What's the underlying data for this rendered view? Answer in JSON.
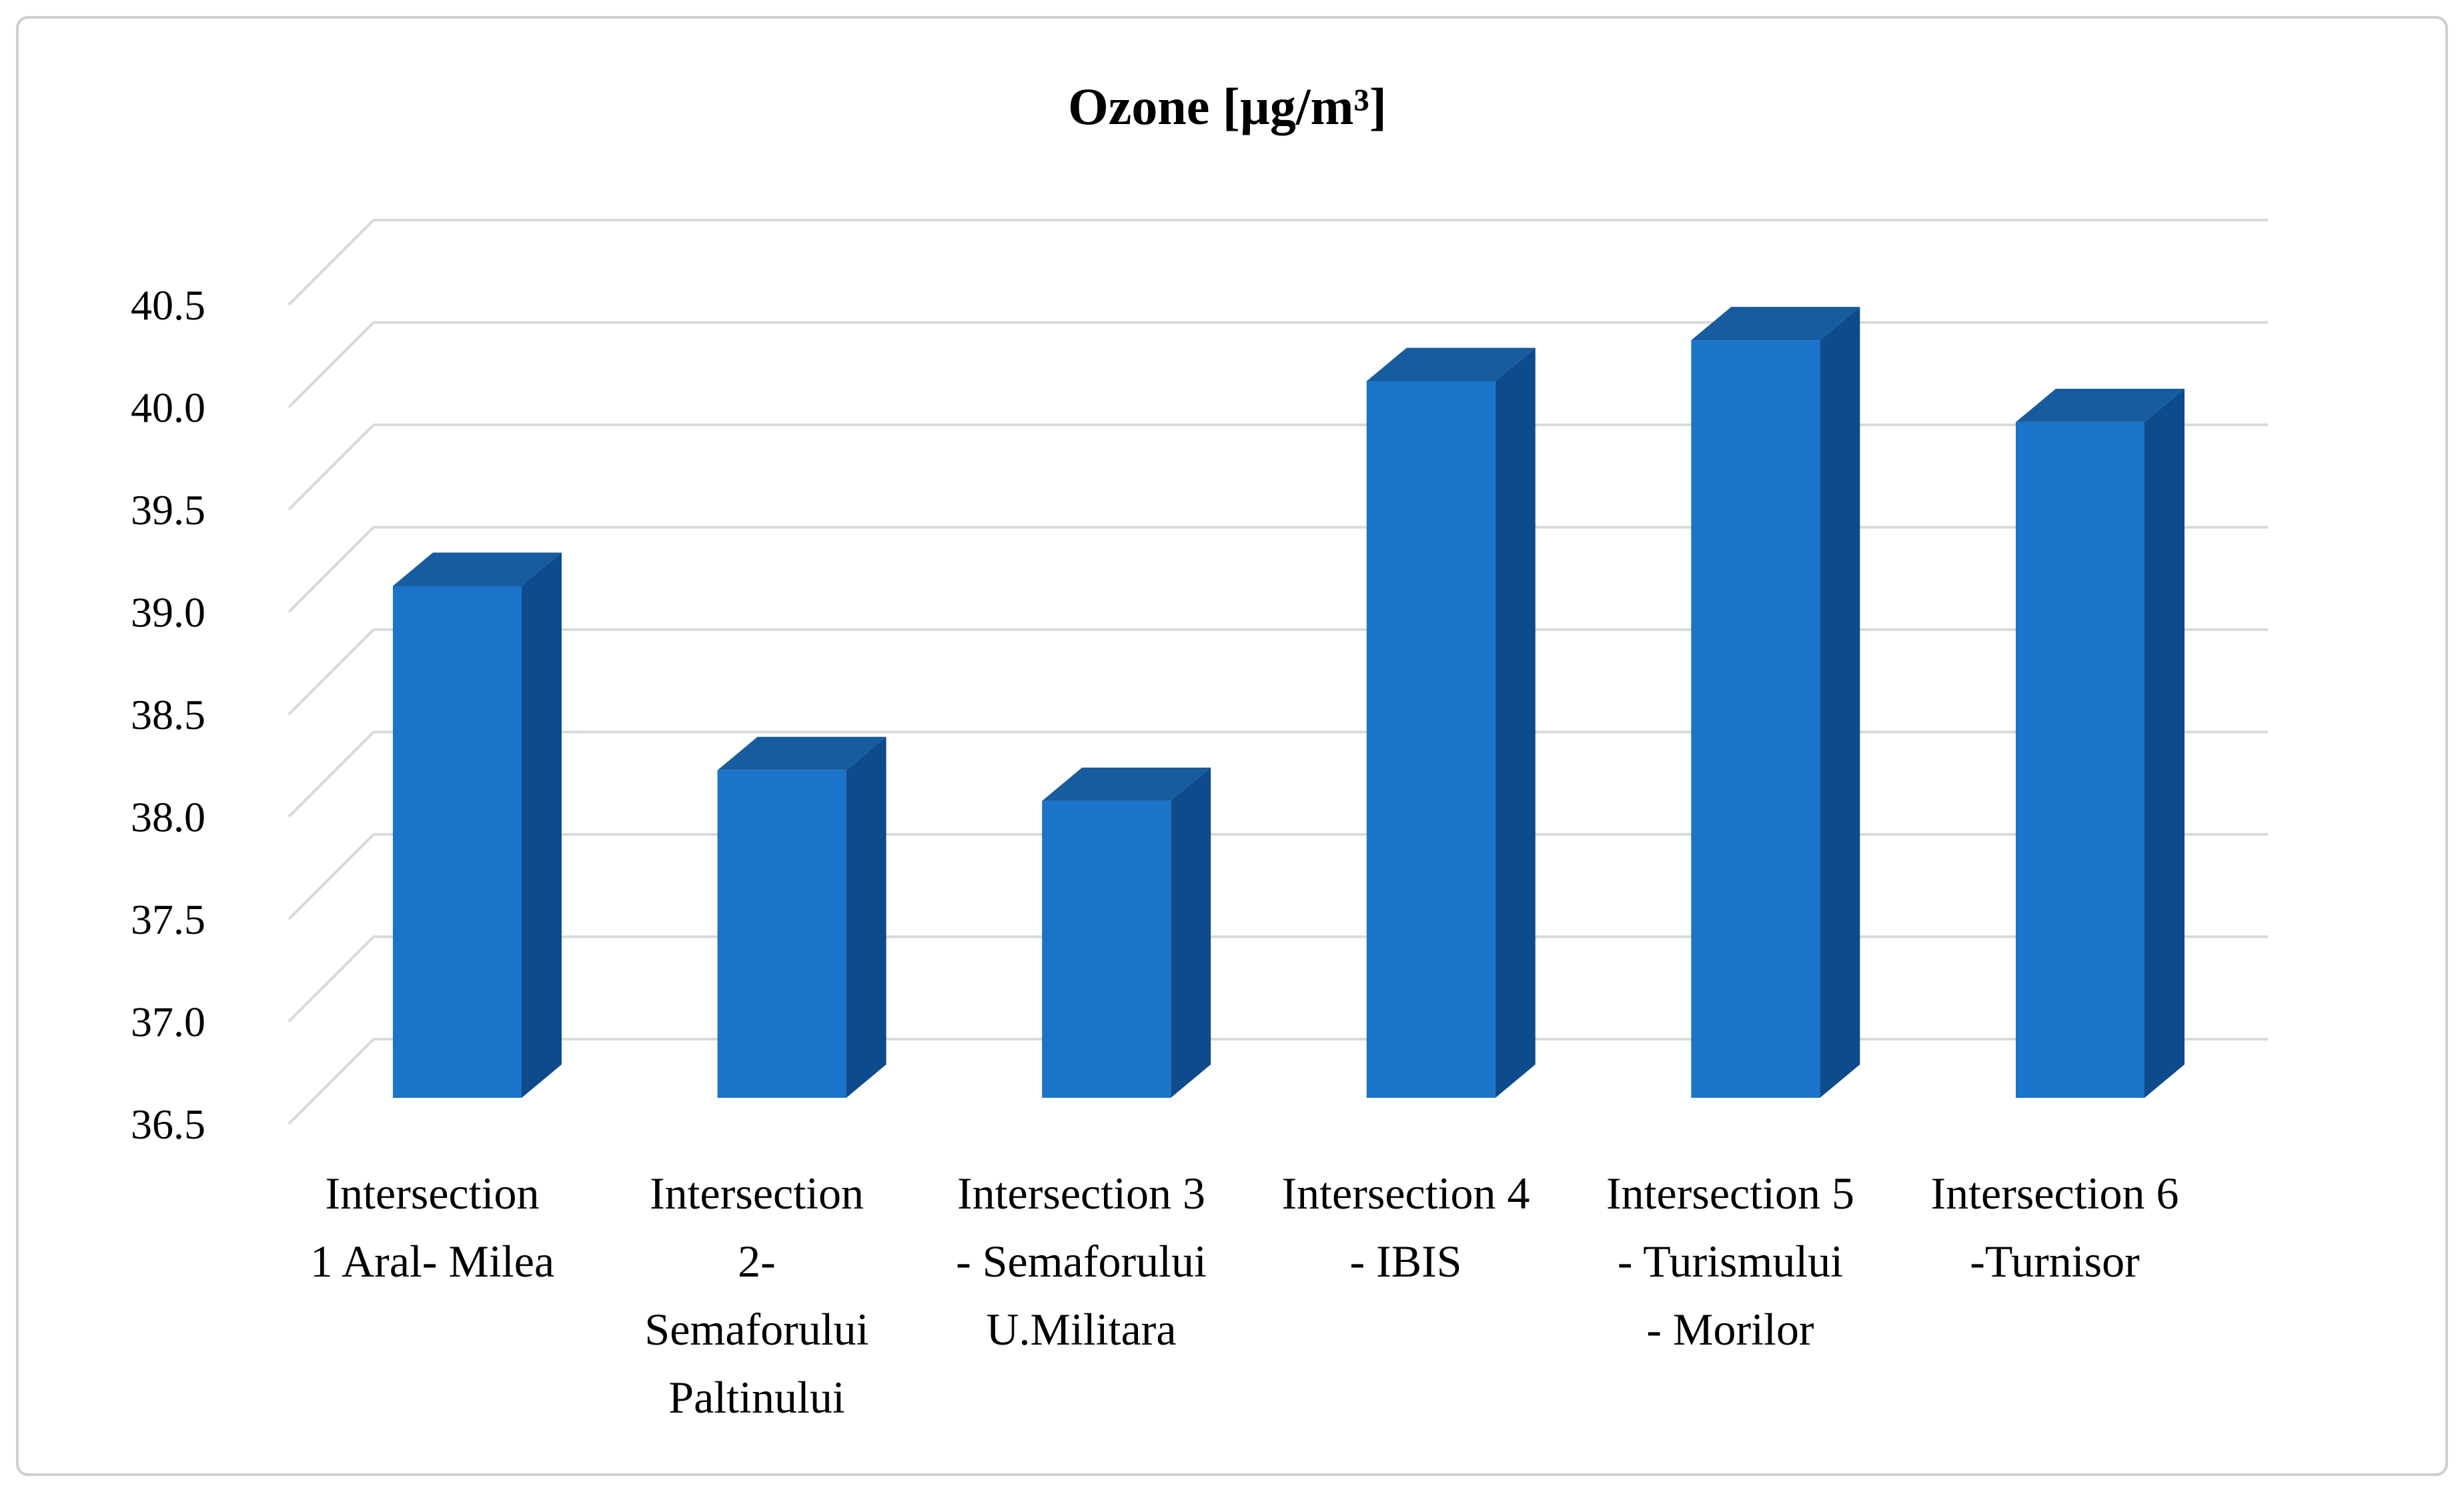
{
  "frame": {
    "background": "#FFFFFF",
    "border_color": "#CFCFCF"
  },
  "chart_data": {
    "type": "bar",
    "projection": "3d-oblique-column",
    "title": "Ozone [µg/m³]",
    "unit": "µg/m³",
    "categories": [
      "Intersection 1 Aral- Milea",
      "Intersection 2- Semaforului Paltinului",
      "Intersection 3 - Semaforului U.Militara",
      "Intersection 4 - IBIS",
      "Intersection 5 - Turismului - Morilor",
      "Intersection 6 -Turnisor"
    ],
    "categories_lines": [
      [
        "Intersection",
        "1 Aral- Milea"
      ],
      [
        "Intersection",
        "2-",
        "Semaforului",
        "Paltinului"
      ],
      [
        "Intersection 3",
        "- Semaforului",
        "U.Militara"
      ],
      [
        "Intersection 4",
        "- IBIS"
      ],
      [
        "Intersection 5",
        "- Turismului",
        "- Morilor"
      ],
      [
        "Intersection 6",
        "-Turnisor"
      ]
    ],
    "values": [
      39.0,
      38.1,
      37.95,
      40.0,
      40.2,
      39.8
    ],
    "ylim": [
      36.5,
      40.5
    ],
    "y_tick_step": 0.5,
    "y_ticks": [
      "40.5",
      "40.0",
      "39.5",
      "39.0",
      "38.5",
      "38.0",
      "37.5",
      "37.0",
      "36.5"
    ],
    "xlabel": "",
    "ylabel": "",
    "grid": true,
    "legend": false,
    "bar_colors": {
      "front": "#1B74C9",
      "top": "#175C9E",
      "side": "#0E4B8C"
    },
    "gridline_color": "#D9D9D9",
    "text_color": "#000000"
  }
}
